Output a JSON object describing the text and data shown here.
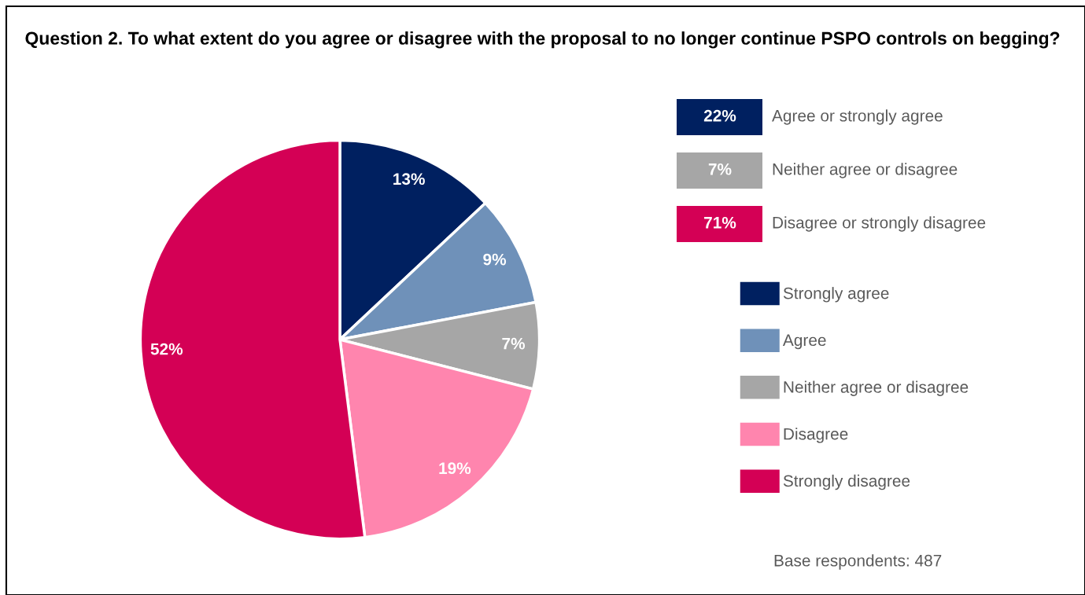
{
  "chart_data": [
    {
      "type": "pie",
      "title": "Question 2. To what extent do you agree or disagree with the proposal to no longer continue PSPO controls on begging?",
      "categories": [
        "Strongly agree",
        "Agree",
        "Neither agree or disagree",
        "Disagree",
        "Strongly disagree"
      ],
      "values": [
        13,
        9,
        7,
        19,
        52
      ],
      "colors": [
        "#002060",
        "#6f91b9",
        "#a6a6a6",
        "#ff85ae",
        "#d40055"
      ],
      "value_labels": [
        "13%",
        "9%",
        "7%",
        "19%",
        "52%"
      ],
      "legend": "right",
      "annotations": [
        "Base respondents: 487"
      ]
    },
    {
      "type": "other",
      "categories": [
        "Agree or strongly agree",
        "Neither agree or disagree",
        "Disagree or strongly disagree"
      ],
      "colors": [
        "#002060",
        "#a6a6a6",
        "#d40055"
      ],
      "value_labels": [
        "22%",
        "7%",
        "71%"
      ]
    }
  ]
}
